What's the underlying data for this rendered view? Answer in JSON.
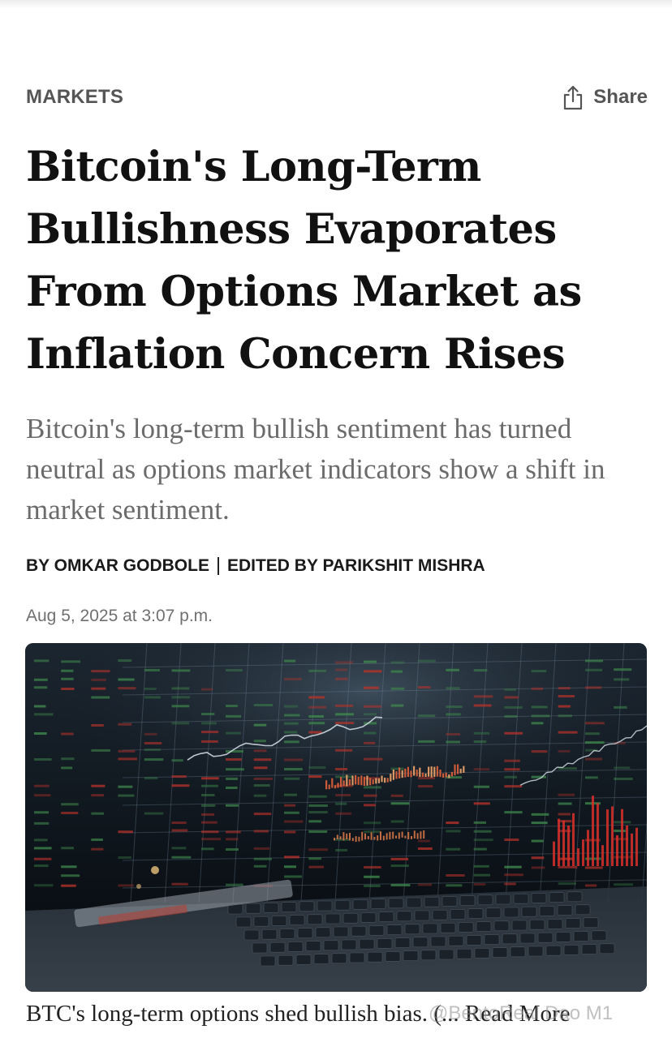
{
  "article": {
    "section": "MARKETS",
    "share_label": "Share",
    "headline": "Bitcoin's Long-Term Bullishness Evaporates From Options Market as Inflation Concern Rises",
    "dek": "Bitcoin's long-term bullish sentiment has turned neutral as options market indicators show a shift in market sentiment.",
    "byline_author": "BY OMKAR GODBOLE",
    "byline_editor": "EDITED BY PARIKSHIT MISHRA",
    "timestamp": "Aug 5, 2025 at 3:07 p.m.",
    "caption": "BTC's long-term options shed bullish bias. (",
    "read_more": "... Read More"
  },
  "icons": {
    "share": "share-icon",
    "hero": "trading-screens-image"
  },
  "watermark": "@BentoReal Dao M1",
  "colors": {
    "section_text": "#555555",
    "headline_text": "#111111",
    "dek_text": "#6b6b6b",
    "timestamp_text": "#707070"
  }
}
